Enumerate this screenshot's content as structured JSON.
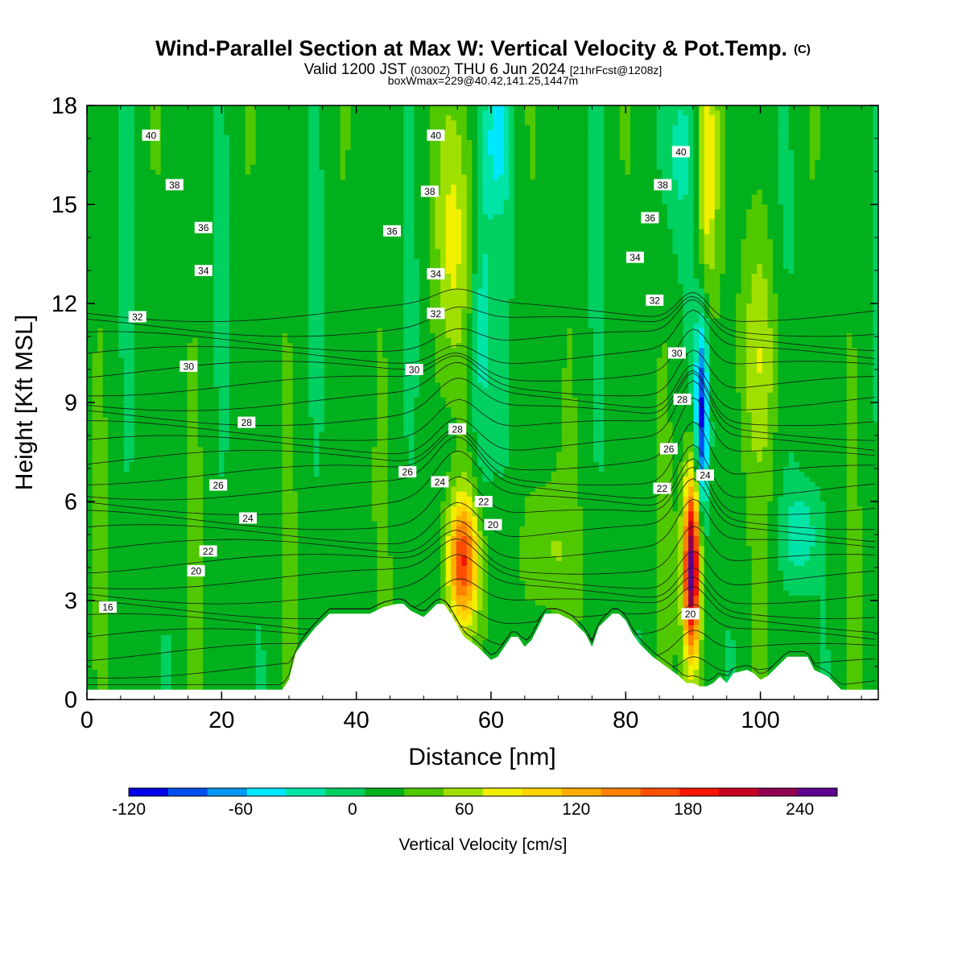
{
  "title": {
    "main": "Wind-Parallel Section at Max W: Vertical Velocity & Pot.Temp.",
    "copyright": "(C)",
    "valid_prefix": "Valid 1200 JST",
    "utc": "(0300Z)",
    "valid_date": "THU 6 Jun 2024",
    "forecast": "[21hrFcst@1208z]",
    "box_info": "boxWmax=229@40.42,141.25,1447m"
  },
  "chart_data": {
    "type": "heatmap",
    "xlabel": "Distance [nm]",
    "ylabel": "Height [Kft MSL]",
    "xlim": [
      0,
      117.5
    ],
    "ylim": [
      0,
      18
    ],
    "x_ticks": [
      0,
      20,
      40,
      60,
      80,
      100
    ],
    "y_ticks": [
      0,
      3,
      6,
      9,
      12,
      15,
      18
    ],
    "grid": false,
    "colorbar": {
      "label": "Vertical Velocity [cm/s]",
      "min": -120,
      "max": 260,
      "step": 20,
      "tick_values": [
        -120,
        -60,
        0,
        60,
        120,
        180,
        240
      ],
      "tick_labels": [
        "-120",
        "-60",
        "0",
        "60",
        "120",
        "180",
        "240"
      ],
      "colors": [
        "#0000e8",
        "#0050f0",
        "#0098f0",
        "#00e8ff",
        "#00e4a8",
        "#00d060",
        "#00b01c",
        "#50c800",
        "#a0e000",
        "#f0f000",
        "#fcd400",
        "#fcae00",
        "#fc8200",
        "#fc5000",
        "#f41400",
        "#c80020",
        "#900050",
        "#600090"
      ]
    },
    "background_w": 10,
    "updrafts": [
      {
        "x": 55.7,
        "z": 4.2,
        "peak": 150,
        "sx": 1.6,
        "sz": 1.4
      },
      {
        "x": 89.8,
        "z": 4.0,
        "peak": 229,
        "sx": 0.9,
        "sz": 2.0
      },
      {
        "x": 92.0,
        "z": 16.0,
        "peak": 70,
        "sx": 1.1,
        "sz": 2.6
      },
      {
        "x": 54.5,
        "z": 14.0,
        "peak": 55,
        "sx": 1.8,
        "sz": 3.0
      },
      {
        "x": 68.0,
        "z": 4.5,
        "peak": 35,
        "sx": 2.5,
        "sz": 1.5
      },
      {
        "x": 100.0,
        "z": 10.5,
        "peak": 40,
        "sx": 2.0,
        "sz": 2.5
      }
    ],
    "downdrafts": [
      {
        "x": 91.3,
        "z": 8.5,
        "peak": -110,
        "sx": 0.7,
        "sz": 2.2
      },
      {
        "x": 58.5,
        "z": 11.0,
        "peak": -45,
        "sx": 1.2,
        "sz": 4.0
      },
      {
        "x": 61.0,
        "z": 17.0,
        "peak": -50,
        "sx": 1.5,
        "sz": 1.5
      },
      {
        "x": 106.0,
        "z": 5.0,
        "peak": -45,
        "sx": 1.8,
        "sz": 1.0
      },
      {
        "x": 87.5,
        "z": 16.5,
        "peak": -30,
        "sx": 2.0,
        "sz": 2.0
      }
    ],
    "terrain": {
      "x": [
        0,
        4,
        5,
        10,
        20,
        29,
        30,
        31,
        32,
        34,
        36,
        40,
        42,
        44,
        46,
        47,
        48,
        50,
        52,
        53,
        54,
        56,
        58,
        59,
        60,
        61,
        62,
        63,
        64,
        65,
        66,
        68,
        70,
        72,
        73,
        74,
        75,
        76,
        78,
        79,
        80,
        81,
        82,
        84,
        86,
        88,
        89,
        90,
        91,
        92,
        93,
        94,
        95,
        96,
        98,
        99,
        100,
        101,
        102,
        104,
        105,
        106,
        107,
        108,
        110,
        111,
        112,
        117.5
      ],
      "z": [
        0.3,
        0.3,
        0.3,
        0.3,
        0.3,
        0.3,
        0.6,
        1.4,
        1.7,
        2.2,
        2.6,
        2.6,
        2.6,
        2.8,
        2.9,
        2.9,
        2.7,
        2.5,
        2.9,
        2.9,
        2.6,
        1.9,
        1.6,
        1.4,
        1.2,
        1.3,
        1.6,
        1.9,
        1.9,
        1.6,
        1.8,
        2.6,
        2.6,
        2.4,
        2.2,
        2.0,
        1.6,
        2.2,
        2.6,
        2.6,
        2.4,
        2.0,
        1.7,
        1.3,
        1.0,
        0.7,
        0.5,
        0.5,
        0.4,
        0.4,
        0.5,
        0.7,
        0.5,
        0.8,
        0.9,
        0.8,
        0.6,
        0.7,
        0.9,
        1.3,
        1.3,
        1.3,
        1.3,
        0.9,
        0.7,
        0.5,
        0.3,
        0.3
      ]
    },
    "theta_contour_labels": [
      {
        "text": "40",
        "x": 9.5,
        "z": 17.1
      },
      {
        "text": "38",
        "x": 13.0,
        "z": 15.6
      },
      {
        "text": "36",
        "x": 17.3,
        "z": 14.3
      },
      {
        "text": "34",
        "x": 17.3,
        "z": 13.0
      },
      {
        "text": "32",
        "x": 7.5,
        "z": 11.6
      },
      {
        "text": "30",
        "x": 15.1,
        "z": 10.1
      },
      {
        "text": "28",
        "x": 23.7,
        "z": 8.4
      },
      {
        "text": "26",
        "x": 19.5,
        "z": 6.5
      },
      {
        "text": "24",
        "x": 23.9,
        "z": 5.5
      },
      {
        "text": "22",
        "x": 18.0,
        "z": 4.5
      },
      {
        "text": "20",
        "x": 16.2,
        "z": 3.9
      },
      {
        "text": "16",
        "x": 3.1,
        "z": 2.8
      },
      {
        "text": "40",
        "x": 51.8,
        "z": 17.1
      },
      {
        "text": "38",
        "x": 50.9,
        "z": 15.4
      },
      {
        "text": "36",
        "x": 45.3,
        "z": 14.2
      },
      {
        "text": "34",
        "x": 51.8,
        "z": 12.9
      },
      {
        "text": "32",
        "x": 51.8,
        "z": 11.7
      },
      {
        "text": "30",
        "x": 48.6,
        "z": 10.0
      },
      {
        "text": "28",
        "x": 55.0,
        "z": 8.2
      },
      {
        "text": "26",
        "x": 47.6,
        "z": 6.9
      },
      {
        "text": "24",
        "x": 52.4,
        "z": 6.6
      },
      {
        "text": "22",
        "x": 58.9,
        "z": 6.0
      },
      {
        "text": "20",
        "x": 60.3,
        "z": 5.3
      },
      {
        "text": "40",
        "x": 88.2,
        "z": 16.6
      },
      {
        "text": "38",
        "x": 85.5,
        "z": 15.6
      },
      {
        "text": "36",
        "x": 83.6,
        "z": 14.6
      },
      {
        "text": "34",
        "x": 81.4,
        "z": 13.4
      },
      {
        "text": "32",
        "x": 84.3,
        "z": 12.1
      },
      {
        "text": "30",
        "x": 87.6,
        "z": 10.5
      },
      {
        "text": "28",
        "x": 88.4,
        "z": 9.1
      },
      {
        "text": "26",
        "x": 86.4,
        "z": 7.6
      },
      {
        "text": "24",
        "x": 91.8,
        "z": 6.8
      },
      {
        "text": "22",
        "x": 85.4,
        "z": 6.4
      },
      {
        "text": "20",
        "x": 89.6,
        "z": 2.6
      }
    ],
    "theta_contour_levels": [
      16,
      17,
      18,
      19,
      20,
      21,
      22,
      23,
      24,
      25,
      26,
      27,
      28,
      29,
      30,
      31,
      32,
      33,
      34,
      35,
      36,
      37,
      38,
      39,
      40,
      41
    ]
  }
}
